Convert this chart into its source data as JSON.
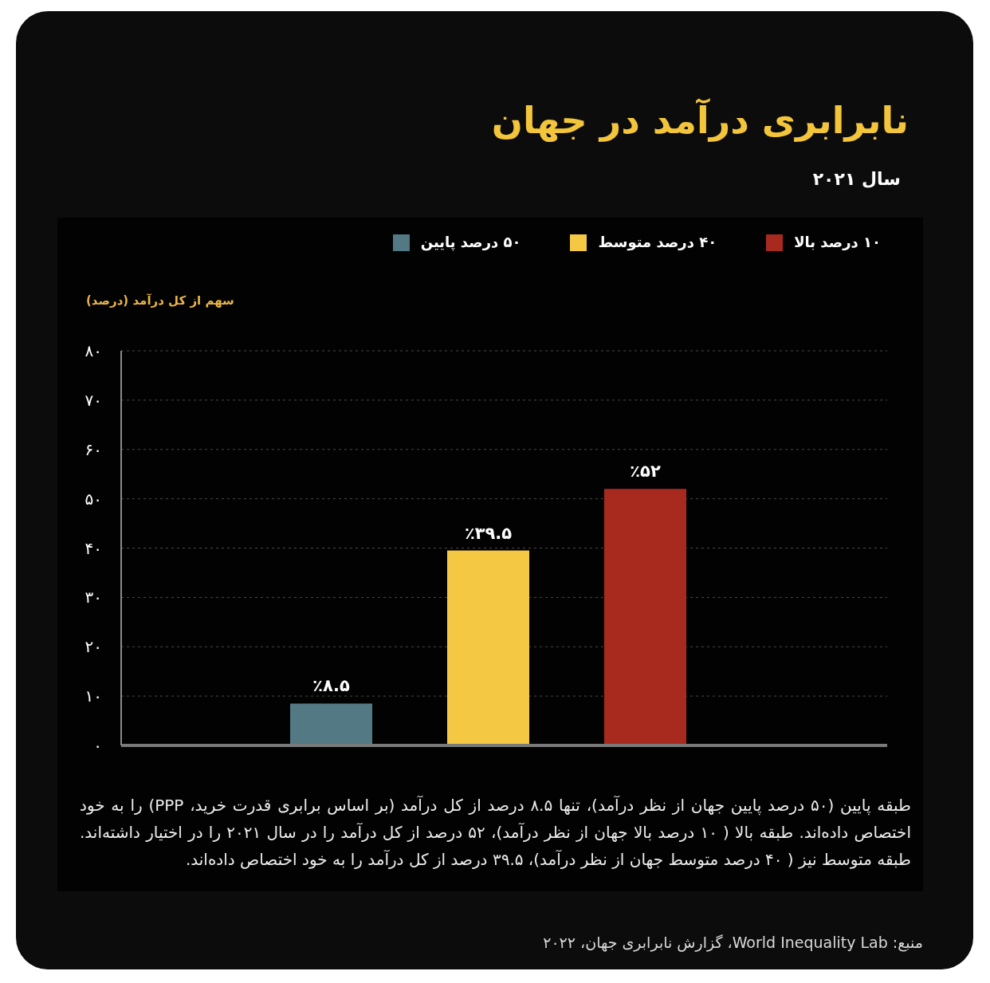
{
  "chart_data": {
    "type": "bar",
    "title": "نابرابری درآمد در جهان",
    "subtitle": "سال ۲۰۲۱",
    "ylabel": "سهم از کل درآمد (درصد)",
    "categories": [
      null
    ],
    "series": [
      {
        "name": "۵۰ درصد پایین",
        "color": "#537984",
        "values": [
          8.5
        ],
        "value_labels": [
          "٪۸.۵"
        ]
      },
      {
        "name": "۴۰ درصد متوسط",
        "color": "#f4c842",
        "values": [
          39.5
        ],
        "value_labels": [
          "٪۳۹.۵"
        ]
      },
      {
        "name": "۱۰ درصد بالا",
        "color": "#a82a1f",
        "values": [
          52
        ],
        "value_labels": [
          "٪۵۲"
        ]
      }
    ],
    "ylim": [
      0,
      80
    ],
    "yticks": [
      {
        "value": 0,
        "label": "۰"
      },
      {
        "value": 10,
        "label": "۱۰"
      },
      {
        "value": 20,
        "label": "۲۰"
      },
      {
        "value": 30,
        "label": "۳۰"
      },
      {
        "value": 40,
        "label": "۴۰"
      },
      {
        "value": 50,
        "label": "۵۰"
      },
      {
        "value": 60,
        "label": "۶۰"
      },
      {
        "value": 70,
        "label": "۷۰"
      },
      {
        "value": 80,
        "label": "۸۰"
      }
    ],
    "grid": "y",
    "legend": "top right",
    "annotations": [
      "طبقه پایین (۵۰ درصد پایین جهان از نظر درآمد)، تنها ۸.۵ درصد از کل درآمد (بر اساس برابری قدرت خرید، PPP) را به خود اختصاص داده‌اند. طبقه بالا ( ۱۰ درصد بالا جهان از نظر درآمد)، ۵۲ درصد از کل درآمد را در سال ۲۰۲۱ را در اختیار داشته‌اند. طبقه متوسط نیز ( ۴۰ درصد متوسط جهان از نظر درآمد)، ۳۹.۵ درصد از کل درآمد را به خود اختصاص داده‌اند.",
      "منبع: World Inequality Lab، گزارش نابرابری جهان، ۲۰۲۲"
    ]
  }
}
